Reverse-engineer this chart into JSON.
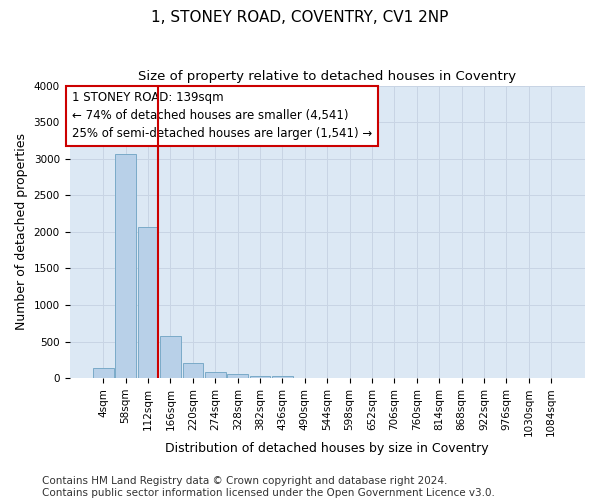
{
  "title": "1, STONEY ROAD, COVENTRY, CV1 2NP",
  "subtitle": "Size of property relative to detached houses in Coventry",
  "xlabel": "Distribution of detached houses by size in Coventry",
  "ylabel": "Number of detached properties",
  "bar_categories": [
    "4sqm",
    "58sqm",
    "112sqm",
    "166sqm",
    "220sqm",
    "274sqm",
    "328sqm",
    "382sqm",
    "436sqm",
    "490sqm",
    "544sqm",
    "598sqm",
    "652sqm",
    "706sqm",
    "760sqm",
    "814sqm",
    "868sqm",
    "922sqm",
    "976sqm",
    "1030sqm",
    "1084sqm"
  ],
  "bar_values": [
    140,
    3060,
    2060,
    570,
    200,
    80,
    50,
    35,
    30,
    0,
    0,
    0,
    0,
    0,
    0,
    0,
    0,
    0,
    0,
    0,
    0
  ],
  "bar_color": "#b8d0e8",
  "bar_edge_color": "#7aaac8",
  "grid_color": "#c8d4e4",
  "background_color": "#dce8f4",
  "ylim": [
    0,
    4000
  ],
  "yticks": [
    0,
    500,
    1000,
    1500,
    2000,
    2500,
    3000,
    3500,
    4000
  ],
  "vline_color": "#cc0000",
  "annotation_line1": "1 STONEY ROAD: 139sqm",
  "annotation_line2": "← 74% of detached houses are smaller (4,541)",
  "annotation_line3": "25% of semi-detached houses are larger (1,541) →",
  "annotation_box_color": "#cc0000",
  "footer_line1": "Contains HM Land Registry data © Crown copyright and database right 2024.",
  "footer_line2": "Contains public sector information licensed under the Open Government Licence v3.0.",
  "title_fontsize": 11,
  "subtitle_fontsize": 9.5,
  "xlabel_fontsize": 9,
  "ylabel_fontsize": 9,
  "annotation_fontsize": 8.5,
  "footer_fontsize": 7.5,
  "tick_fontsize": 7.5
}
